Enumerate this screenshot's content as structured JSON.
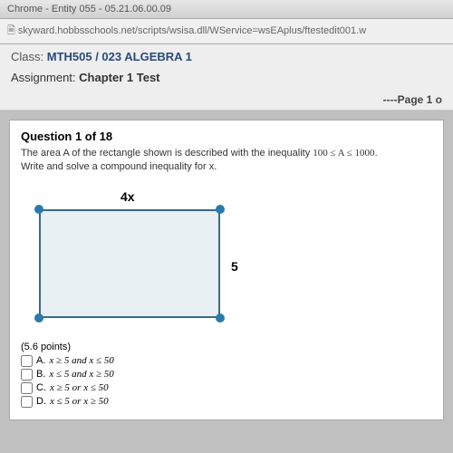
{
  "browser": {
    "title": "Chrome - Entity 055 - 05.21.06.00.09",
    "url": "skyward.hobbsschools.net/scripts/wsisa.dll/WService=wsEAplus/ftestedit001.w"
  },
  "header": {
    "class_label": "Class:",
    "class_value": "MTH505 / 023  ALGEBRA 1",
    "assign_label": "Assignment:",
    "assign_value": "Chapter 1 Test",
    "page_indicator": "----Page 1 o"
  },
  "question": {
    "title": "Question 1 of 18",
    "text_part1": "The area A of the rectangle shown is described with the inequality ",
    "inequality": "100 ≤ A ≤ 1000",
    "text_part2": ".",
    "text_line2": "Write and solve a compound inequality for x.",
    "top_label": "4x",
    "right_label": "5",
    "points": "(5.6 points)",
    "options": {
      "a": {
        "letter": "A.",
        "text": "x ≥ 5 and x ≤ 50"
      },
      "b": {
        "letter": "B.",
        "text": "x ≤ 5 and x ≥ 50"
      },
      "c": {
        "letter": "C.",
        "text": "x ≥ 5 or x ≤ 50"
      },
      "d": {
        "letter": "D.",
        "text": "x ≤ 5 or x ≥ 50"
      }
    }
  },
  "colors": {
    "rect_fill": "#e8f0f4",
    "rect_border": "#3a6a8a",
    "dot": "#2a7aaa"
  }
}
